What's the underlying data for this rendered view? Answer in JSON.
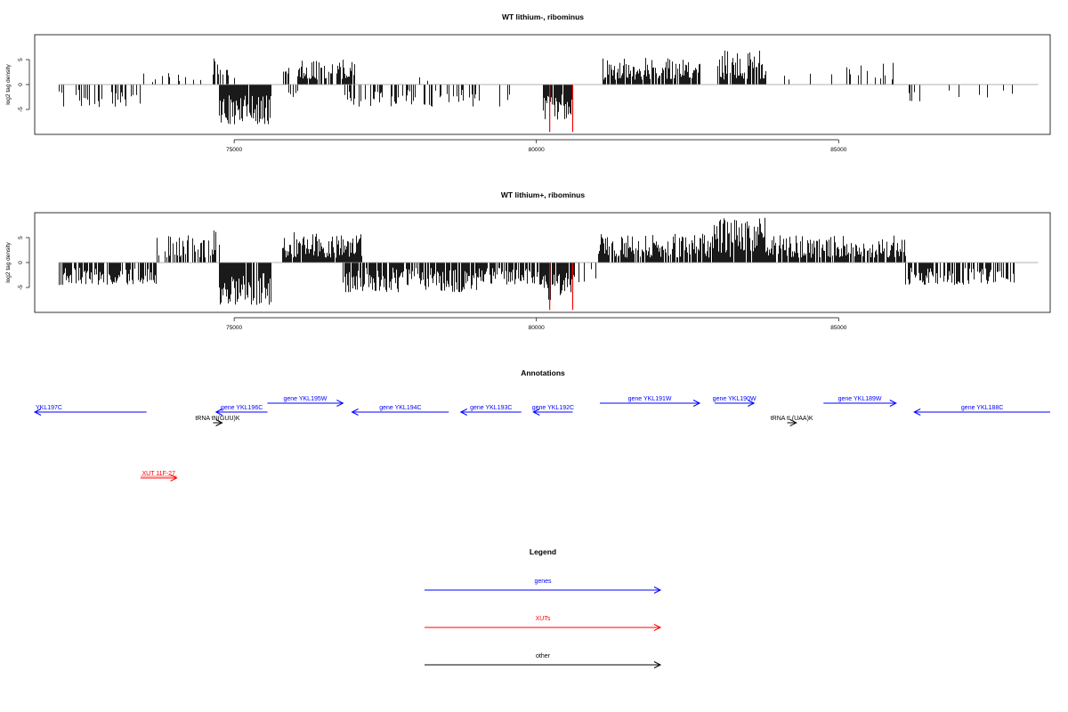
{
  "colors": {
    "gene": "#0000ff",
    "xut": "#ff0000",
    "other": "#000000",
    "bar": "#000000",
    "highlight": "#ff0000",
    "zero_line": "#999999"
  },
  "chart_data": [
    {
      "type": "bar",
      "title": "WT lithium-, ribominus",
      "ylabel": "log2 tag density",
      "xlim": [
        71700,
        88500
      ],
      "ylim": [
        -10,
        10
      ],
      "xticks": [
        75000,
        80000,
        85000
      ],
      "yticks": [
        -5,
        0,
        5
      ],
      "seed": 7,
      "profile": [
        {
          "from": 72100,
          "to": 73500,
          "density": 0.35,
          "min": -4.5,
          "max": -1
        },
        {
          "from": 73500,
          "to": 74100,
          "density": 0.12,
          "min": 0.5,
          "max": 2.5
        },
        {
          "from": 74000,
          "to": 74500,
          "density": 0.05,
          "min": 0.5,
          "max": 1.5
        },
        {
          "from": 74600,
          "to": 74800,
          "density": 0.6,
          "min": 2,
          "max": 5.5
        },
        {
          "from": 74800,
          "to": 75000,
          "density": 0.3,
          "min": 1,
          "max": 3
        },
        {
          "from": 74750,
          "to": 75600,
          "density": 0.9,
          "min": -8,
          "max": -2
        },
        {
          "from": 75800,
          "to": 75900,
          "density": 0.7,
          "min": 2,
          "max": 3.5
        },
        {
          "from": 75900,
          "to": 76050,
          "density": 0.3,
          "min": -2.5,
          "max": -1
        },
        {
          "from": 76050,
          "to": 77000,
          "density": 0.75,
          "min": 1,
          "max": 5
        },
        {
          "from": 76800,
          "to": 78000,
          "density": 0.35,
          "min": -4.5,
          "max": -1
        },
        {
          "from": 78000,
          "to": 78200,
          "density": 0.05,
          "min": 0.5,
          "max": 1.5
        },
        {
          "from": 78100,
          "to": 79600,
          "density": 0.22,
          "min": -4.5,
          "max": -1
        },
        {
          "from": 80100,
          "to": 80600,
          "density": 0.9,
          "min": -7,
          "max": -2
        },
        {
          "from": 81100,
          "to": 82700,
          "density": 0.85,
          "min": 1,
          "max": 5.5
        },
        {
          "from": 83000,
          "to": 83800,
          "density": 0.75,
          "min": 1,
          "max": 7
        },
        {
          "from": 84100,
          "to": 84200,
          "density": 0.3,
          "min": 1,
          "max": 3
        },
        {
          "from": 84400,
          "to": 85900,
          "density": 0.18,
          "min": 1,
          "max": 4.5
        },
        {
          "from": 86100,
          "to": 86400,
          "density": 0.2,
          "min": -3.5,
          "max": -1
        },
        {
          "from": 86800,
          "to": 87900,
          "density": 0.06,
          "min": -3,
          "max": -1
        }
      ],
      "highlights": [
        {
          "x": 80220,
          "y": -9.5
        },
        {
          "x": 80600,
          "y": -9.5
        }
      ]
    },
    {
      "type": "bar",
      "title": "WT lithium+, ribominus",
      "ylabel": "log2 tag density",
      "xlim": [
        71700,
        88500
      ],
      "ylim": [
        -10,
        10
      ],
      "xticks": [
        75000,
        80000,
        85000
      ],
      "yticks": [
        -5,
        0,
        5
      ],
      "seed": 19,
      "profile": [
        {
          "from": 72100,
          "to": 73700,
          "density": 0.7,
          "min": -4.5,
          "max": -1
        },
        {
          "from": 73700,
          "to": 74500,
          "density": 0.45,
          "min": 1,
          "max": 5.5
        },
        {
          "from": 74500,
          "to": 74750,
          "density": 0.45,
          "min": 1,
          "max": 6.5
        },
        {
          "from": 74750,
          "to": 75600,
          "density": 0.95,
          "min": -8.5,
          "max": -2
        },
        {
          "from": 75800,
          "to": 77100,
          "density": 0.95,
          "min": 1,
          "max": 6.5
        },
        {
          "from": 76800,
          "to": 79000,
          "density": 0.8,
          "min": -6,
          "max": -1
        },
        {
          "from": 79000,
          "to": 80100,
          "density": 0.65,
          "min": -4.5,
          "max": -1
        },
        {
          "from": 80100,
          "to": 80600,
          "density": 0.95,
          "min": -7.5,
          "max": -2
        },
        {
          "from": 80600,
          "to": 81000,
          "density": 0.3,
          "min": -4,
          "max": -1
        },
        {
          "from": 81000,
          "to": 82900,
          "density": 0.85,
          "min": 1,
          "max": 6
        },
        {
          "from": 82900,
          "to": 83800,
          "density": 0.95,
          "min": 1,
          "max": 9
        },
        {
          "from": 83800,
          "to": 86100,
          "density": 0.8,
          "min": 1,
          "max": 5.5
        },
        {
          "from": 86100,
          "to": 87900,
          "density": 0.65,
          "min": -4.5,
          "max": -1
        }
      ],
      "highlights": [
        {
          "x": 80220,
          "y": -9.5
        },
        {
          "x": 80600,
          "y": -9.5
        }
      ]
    }
  ],
  "annotations": {
    "title": "Annotations",
    "features": [
      {
        "label": "YKL197C",
        "kind": "gene",
        "strand": "-",
        "start": 71700,
        "end": 73550,
        "row": 1,
        "anchor": "start"
      },
      {
        "label": "gene YKL196C",
        "kind": "gene",
        "strand": "-",
        "start": 74700,
        "end": 75550,
        "row": 1
      },
      {
        "label": "tRNA tN(GUU)K",
        "kind": "other",
        "strand": "+",
        "start": 74650,
        "end": 74800,
        "row": 2
      },
      {
        "label": "gene YKL195W",
        "kind": "gene",
        "strand": "+",
        "start": 75550,
        "end": 76800,
        "row": 0
      },
      {
        "label": "gene YKL194C",
        "kind": "gene",
        "strand": "-",
        "start": 76950,
        "end": 78550,
        "row": 1
      },
      {
        "label": "gene YKL193C",
        "kind": "gene",
        "strand": "-",
        "start": 78750,
        "end": 79750,
        "row": 1
      },
      {
        "label": "gene YKL192C",
        "kind": "gene",
        "strand": "-",
        "start": 79950,
        "end": 80600,
        "row": 1
      },
      {
        "label": "gene YKL191W",
        "kind": "gene",
        "strand": "+",
        "start": 81050,
        "end": 82700,
        "row": 0
      },
      {
        "label": "gene YKL190W",
        "kind": "gene",
        "strand": "+",
        "start": 82950,
        "end": 83600,
        "row": 0
      },
      {
        "label": "tRNA tL(UAA)K",
        "kind": "other",
        "strand": "+",
        "start": 84150,
        "end": 84300,
        "row": 2
      },
      {
        "label": "gene YKL189W",
        "kind": "gene",
        "strand": "+",
        "start": 84750,
        "end": 85950,
        "row": 0
      },
      {
        "label": "gene YKL188C",
        "kind": "gene",
        "strand": "-",
        "start": 86250,
        "end": 88500,
        "row": 1
      },
      {
        "label": "XUT 11F-27",
        "kind": "xut",
        "strand": "+",
        "start": 73450,
        "end": 74050,
        "row": 3
      }
    ]
  },
  "legend": {
    "title": "Legend",
    "items": [
      {
        "label": "genes",
        "kind": "gene"
      },
      {
        "label": "XUTs",
        "kind": "xut"
      },
      {
        "label": "other",
        "kind": "other"
      }
    ]
  }
}
